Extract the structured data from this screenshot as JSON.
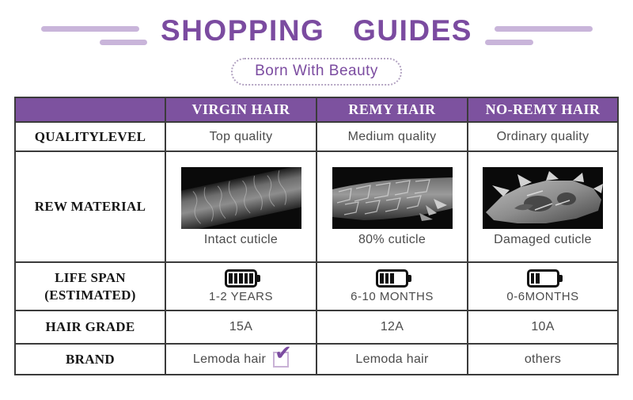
{
  "header": {
    "title": "SHOPPING GUIDES",
    "subtitle": "Born With Beauty"
  },
  "table": {
    "columns": [
      "VIRGIN HAIR",
      "REMY HAIR",
      "NO-REMY HAIR"
    ],
    "rows": {
      "quality": {
        "label": "QUALITYLEVEL",
        "values": [
          "Top quality",
          "Medium quality",
          "Ordinary quality"
        ]
      },
      "material": {
        "label": "REW MATERIAL",
        "captions": [
          "Intact cuticle",
          "80% cuticle",
          "Damaged cuticle"
        ],
        "images": [
          "intact-cuticle-micrograph",
          "80-percent-cuticle-micrograph",
          "damaged-cuticle-micrograph"
        ]
      },
      "lifespan": {
        "label_line1": "LIFE SPAN",
        "label_line2": "(ESTIMATED)",
        "values": [
          "1-2 YEARS",
          "6-10 MONTHS",
          "0-6MONTHS"
        ],
        "battery_bars": [
          5,
          3,
          2
        ]
      },
      "grade": {
        "label": "HAIR GRADE",
        "values": [
          "15A",
          "12A",
          "10A"
        ]
      },
      "brand": {
        "label": "BRAND",
        "values": [
          "Lemoda hair",
          "Lemoda hair",
          "others"
        ],
        "check_glyph": "✔",
        "checked_column": 0
      }
    }
  },
  "icons": {
    "battery_full": "battery-full-icon",
    "battery_medium": "battery-60-percent-icon",
    "battery_low": "battery-40-percent-icon",
    "checkbox": "checked-checkbox-icon"
  },
  "colors": {
    "accent_purple": "#7b4ba0",
    "table_header_bg": "#7d529f",
    "deco_line": "#c9b5da",
    "label_text": "#151515",
    "cell_text": "#4b4b4b"
  }
}
